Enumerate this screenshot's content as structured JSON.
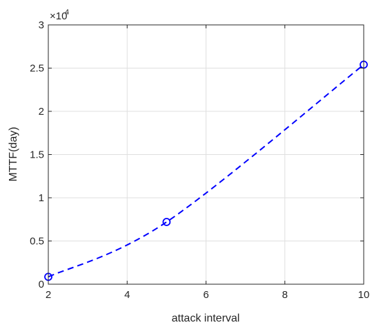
{
  "chart_data": {
    "type": "line",
    "title": "",
    "xlabel": "attack interval",
    "ylabel": "MTTF(day)",
    "xlim": [
      2,
      10
    ],
    "ylim": [
      0,
      30000
    ],
    "xticks": [
      2,
      4,
      6,
      8,
      10
    ],
    "xtick_labels": [
      "2",
      "4",
      "6",
      "8",
      "10"
    ],
    "yticks": [
      0,
      5000,
      10000,
      15000,
      20000,
      25000,
      30000
    ],
    "ytick_labels": [
      "0",
      "0.5",
      "1",
      "1.5",
      "2",
      "2.5",
      "3"
    ],
    "y_exponent_base": "×10",
    "y_exponent_power": "4",
    "grid": true,
    "series": [
      {
        "x": [
          2,
          5,
          10
        ],
        "y": [
          850,
          7200,
          25400
        ],
        "color": "#0000ff",
        "line_style": "dashed",
        "marker": "circle",
        "curve": "smooth"
      }
    ]
  }
}
